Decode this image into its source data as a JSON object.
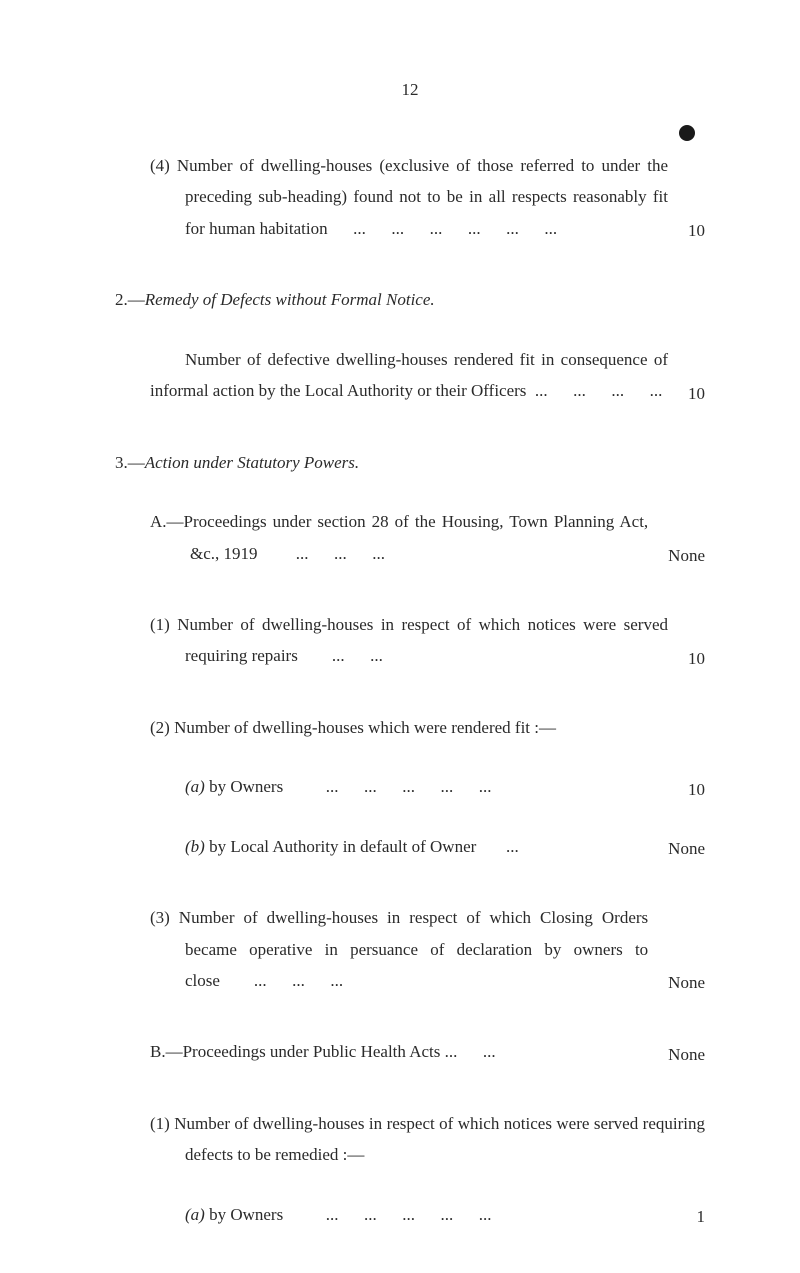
{
  "page_number": "12",
  "item_4": {
    "text": "(4) Number of dwelling-houses (exclusive of those referred to under the preceding sub-heading) found not to be in all respects reasonably fit for human habitation      ...      ...      ...      ...      ...      ...",
    "value": "10"
  },
  "section_2": {
    "heading_prefix": "2.—",
    "heading_italic": "Remedy of Defects without Formal Notice.",
    "para": {
      "text": "Number of defective dwelling-houses rendered fit in consequence of informal action by the Local Authority or their Officers  ...      ...      ...      ...",
      "value": "10"
    }
  },
  "section_3": {
    "heading_prefix": "3.—",
    "heading_italic": "Action under Statutory Powers.",
    "sub_a": {
      "text": "A.—Proceedings under section 28 of the Housing, Town Planning Act, &c., 1919         ...      ...      ...",
      "value": "None"
    },
    "item_1": {
      "text": "(1) Number of dwelling-houses in respect of which notices were served requiring repairs        ...      ...",
      "value": "10"
    },
    "item_2": {
      "text": "(2) Number of dwelling-houses which were rendered fit :—"
    },
    "item_2a": {
      "label": "(a)",
      "text": "by Owners          ...      ...      ...      ...      ...",
      "value": "10"
    },
    "item_2b": {
      "label": "(b)",
      "text": "by Local Authority in default of Owner       ...",
      "value": "None"
    },
    "item_3": {
      "text": "(3) Number of dwelling-houses in respect of which Closing Orders became operative in persuance of declaration by owners to close        ...      ...      ...",
      "value": "None"
    },
    "sub_b": {
      "text": "B.—Proceedings under Public Health Acts ...      ...",
      "value": "None"
    },
    "item_b1": {
      "text": "(1) Number of dwelling-houses in respect of which notices were served requiring defects to be remedied :—"
    },
    "item_b1a": {
      "label": "(a)",
      "text": "by Owners          ...      ...      ...      ...      ...",
      "value": "1"
    }
  }
}
